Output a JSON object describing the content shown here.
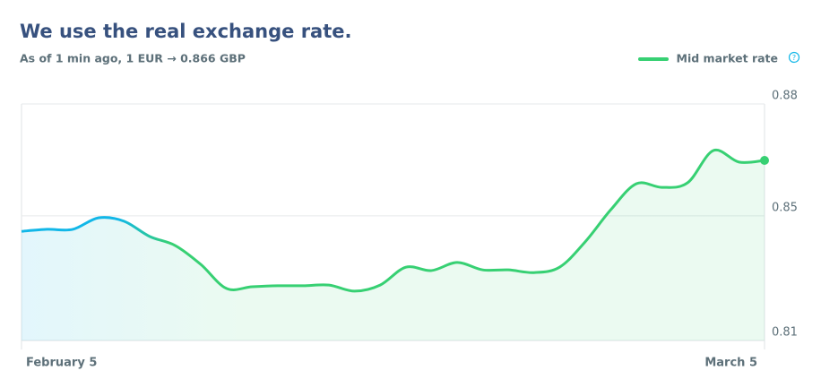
{
  "chart_data": {
    "type": "area",
    "title": "We use the real exchange rate.",
    "subtitle": "As of 1 min ago, 1 EUR → 0.866 GBP",
    "categories": [
      "February 5",
      null,
      null,
      null,
      null,
      null,
      null,
      null,
      null,
      null,
      null,
      null,
      null,
      null,
      null,
      null,
      null,
      null,
      null,
      null,
      null,
      null,
      null,
      null,
      null,
      null,
      null,
      null,
      null,
      "March 5"
    ],
    "series": [
      {
        "name": "Mid market rate",
        "colors": [
          "#12b7e8",
          "#37d073"
        ],
        "values": [
          0.8423,
          0.8429,
          0.8429,
          0.8463,
          0.8453,
          0.8408,
          0.8381,
          0.8325,
          0.8254,
          0.8259,
          0.8262,
          0.8262,
          0.8264,
          0.8246,
          0.8264,
          0.8317,
          0.8307,
          0.8331,
          0.8309,
          0.8309,
          0.8301,
          0.8317,
          0.8392,
          0.8487,
          0.8564,
          0.8553,
          0.8567,
          0.8662,
          0.8628,
          0.8633
        ]
      }
    ],
    "ylim": [
      0.81,
      0.88
    ],
    "yticks": [
      0.81,
      {
        "value": 0.8469,
        "label": "0.85"
      },
      0.88
    ],
    "grid": true,
    "legend": "top-right"
  }
}
